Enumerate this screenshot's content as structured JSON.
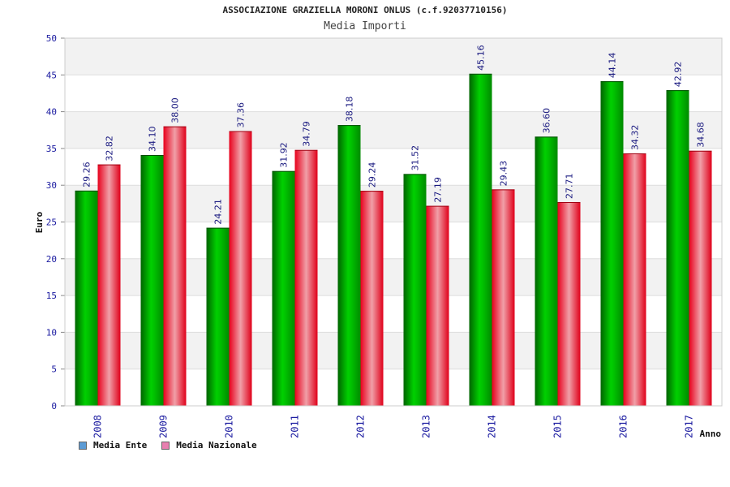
{
  "chart_data": {
    "type": "bar",
    "title": "ASSOCIAZIONE GRAZIELLA MORONI ONLUS (c.f.92037710156)",
    "subtitle": "Media Importi",
    "ylabel": "Euro",
    "xlabel": "Anno",
    "ylim": [
      0,
      50
    ],
    "yticks": [
      0,
      5,
      10,
      15,
      20,
      25,
      30,
      35,
      40,
      45,
      50
    ],
    "categories": [
      "2008",
      "2009",
      "2010",
      "2011",
      "2012",
      "2013",
      "2014",
      "2015",
      "2016",
      "2017"
    ],
    "series": [
      {
        "name": "Media Ente",
        "values": [
          29.26,
          34.1,
          24.21,
          31.92,
          38.18,
          31.52,
          45.16,
          36.6,
          44.14,
          42.92
        ],
        "color": "#00b400"
      },
      {
        "name": "Media Nazionale",
        "values": [
          32.82,
          38.0,
          37.36,
          34.79,
          29.24,
          27.19,
          29.43,
          27.71,
          34.32,
          34.68
        ],
        "color": "#e8001c"
      }
    ],
    "grid": true,
    "legend_position": "bottom-left"
  },
  "legend": {
    "items": [
      {
        "label": "Media Ente",
        "swatch_color": "#5b9bd5"
      },
      {
        "label": "Media Nazionale",
        "swatch_color": "#e87fb0"
      }
    ]
  },
  "colors": {
    "tick_label": "#1a1aa0",
    "band": "#f2f2f2",
    "grid": "#dddddd"
  }
}
